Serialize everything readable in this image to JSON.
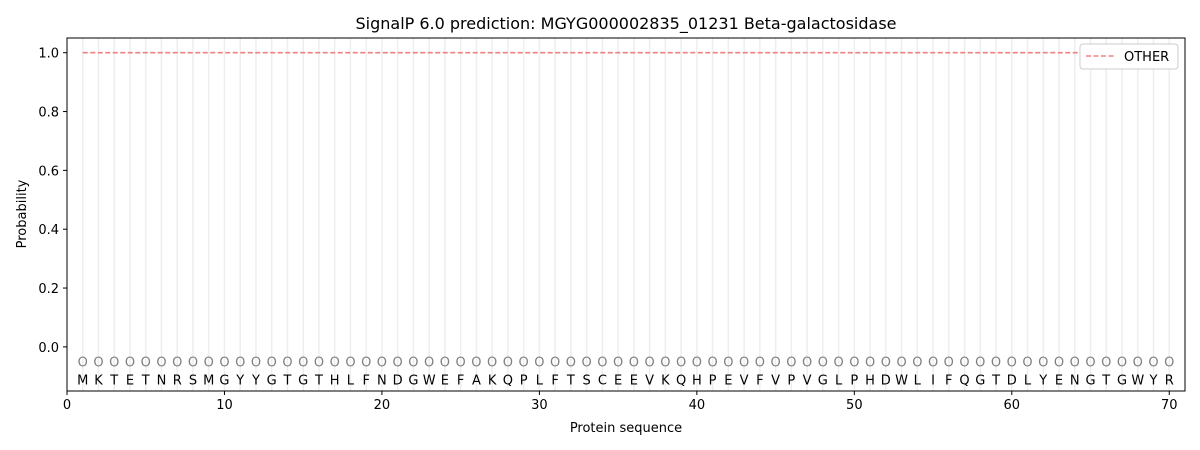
{
  "chart_data": {
    "type": "line",
    "title": "SignalP 6.0 prediction: MGYG000002835_01231 Beta-galactosidase",
    "xlabel": "Protein sequence",
    "ylabel": "Probability",
    "xlim": [
      0,
      71
    ],
    "ylim": [
      -0.15,
      1.05
    ],
    "xticks": [
      0,
      10,
      20,
      30,
      40,
      50,
      60,
      70
    ],
    "yticks": [
      0.0,
      0.2,
      0.4,
      0.6,
      0.8,
      1.0
    ],
    "ytick_labels": [
      "0.0",
      "0.2",
      "0.4",
      "0.6",
      "0.8",
      "1.0"
    ],
    "legend_placement": "top-right",
    "sequence": [
      "M",
      "K",
      "T",
      "E",
      "T",
      "N",
      "R",
      "S",
      "M",
      "G",
      "Y",
      "Y",
      "G",
      "T",
      "G",
      "T",
      "H",
      "L",
      "F",
      "N",
      "D",
      "G",
      "W",
      "E",
      "F",
      "A",
      "K",
      "Q",
      "P",
      "L",
      "F",
      "T",
      "S",
      "C",
      "E",
      "E",
      "V",
      "K",
      "Q",
      "H",
      "P",
      "E",
      "V",
      "F",
      "V",
      "P",
      "V",
      "G",
      "L",
      "P",
      "H",
      "D",
      "W",
      "L",
      "I",
      "F",
      "Q",
      "G",
      "T",
      "D",
      "L",
      "Y",
      "E",
      "N",
      "G",
      "T",
      "G",
      "W",
      "Y",
      "R"
    ],
    "predicted_label": "O",
    "series": [
      {
        "name": "OTHER",
        "color": "#f08080",
        "style": "dashed",
        "x_range": [
          1,
          70
        ],
        "value": 1.0
      }
    ]
  }
}
